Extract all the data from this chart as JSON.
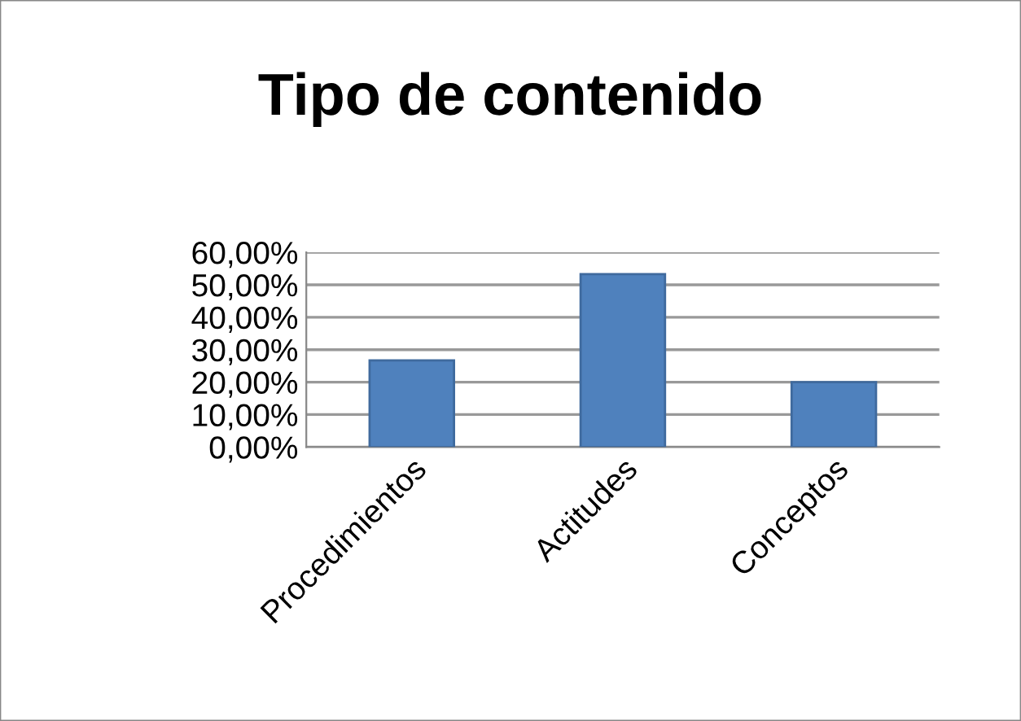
{
  "chart_data": {
    "type": "bar",
    "title": "Tipo de contenido",
    "categories": [
      "Procedimientos",
      "Actitudes",
      "Conceptos"
    ],
    "values": [
      26.7,
      53.3,
      20.0
    ],
    "color": "#4f81bd",
    "ylim": [
      0,
      60
    ],
    "yticks": [
      {
        "value": 0,
        "label": "0,00%"
      },
      {
        "value": 10,
        "label": "10,00%"
      },
      {
        "value": 20,
        "label": "20,00%"
      },
      {
        "value": 30,
        "label": "30,00%"
      },
      {
        "value": 40,
        "label": "40,00%"
      },
      {
        "value": 50,
        "label": "50,00%"
      },
      {
        "value": 60,
        "label": "60,00%"
      }
    ],
    "grid": "y",
    "legend": false
  }
}
